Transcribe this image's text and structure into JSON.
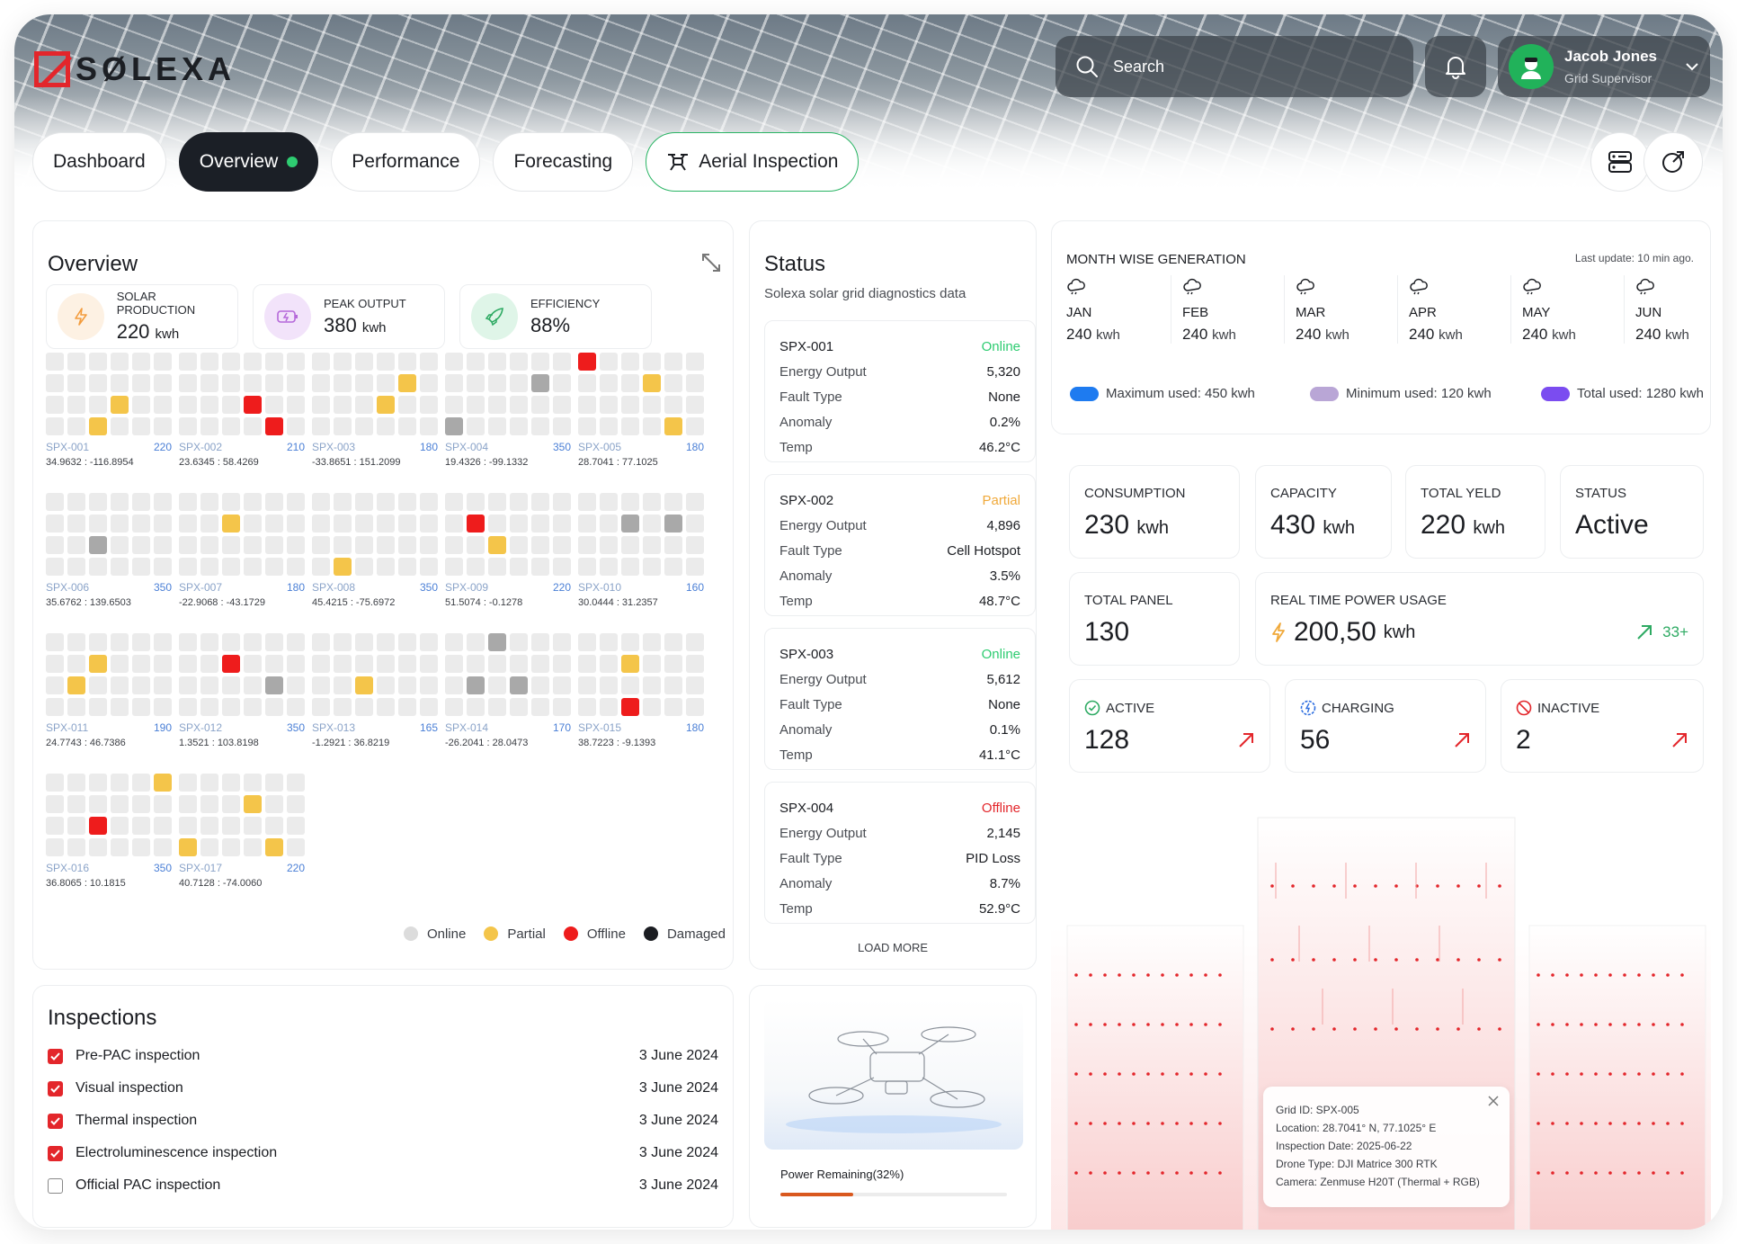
{
  "brand": {
    "name": "SØLEXA"
  },
  "search": {
    "placeholder": "Search"
  },
  "user": {
    "name": "Jacob Jones",
    "role": "Grid Supervisor"
  },
  "tabs": [
    {
      "label": "Dashboard"
    },
    {
      "label": "Overview"
    },
    {
      "label": "Performance"
    },
    {
      "label": "Forecasting"
    },
    {
      "label": "Aerial Inspection"
    }
  ],
  "overview": {
    "title": "Overview",
    "stats": [
      {
        "label": "SOLAR PRODUCTION",
        "value": "220",
        "unit": "kwh"
      },
      {
        "label": "PEAK OUTPUT",
        "value": "380",
        "unit": "kwh"
      },
      {
        "label": "EFFICIENCY",
        "value": "88%",
        "unit": ""
      }
    ],
    "grids": [
      {
        "id": "SPX-001",
        "value": "220",
        "coords": "34.9632 : -116.8954",
        "cells": {
          "15": "p",
          "20": "p"
        }
      },
      {
        "id": "SPX-002",
        "value": "210",
        "coords": "23.6345 : 58.4269",
        "cells": {
          "15": "o",
          "22": "o"
        }
      },
      {
        "id": "SPX-003",
        "value": "180",
        "coords": "-33.8651 : 151.2099",
        "cells": {
          "10": "p",
          "15": "p"
        }
      },
      {
        "id": "SPX-004",
        "value": "350",
        "coords": "19.4326 : -99.1332",
        "cells": {
          "10": "g",
          "18": "g"
        }
      },
      {
        "id": "SPX-005",
        "value": "180",
        "coords": "28.7041 : 77.1025",
        "cells": {
          "0": "o",
          "9": "p",
          "22": "p"
        }
      },
      {
        "id": "SPX-006",
        "value": "350",
        "coords": "35.6762 : 139.6503",
        "cells": {
          "14": "g"
        }
      },
      {
        "id": "SPX-007",
        "value": "180",
        "coords": "-22.9068 : -43.1729",
        "cells": {
          "8": "p"
        }
      },
      {
        "id": "SPX-008",
        "value": "350",
        "coords": "45.4215 : -75.6972",
        "cells": {
          "19": "p"
        }
      },
      {
        "id": "SPX-009",
        "value": "220",
        "coords": "51.5074 : -0.1278",
        "cells": {
          "7": "o",
          "14": "p"
        }
      },
      {
        "id": "SPX-010",
        "value": "160",
        "coords": "30.0444 : 31.2357",
        "cells": {
          "8": "g",
          "10": "g"
        }
      },
      {
        "id": "SPX-011",
        "value": "190",
        "coords": "24.7743 : 46.7386",
        "cells": {
          "8": "p",
          "13": "p"
        }
      },
      {
        "id": "SPX-012",
        "value": "350",
        "coords": "1.3521 : 103.8198",
        "cells": {
          "8": "o",
          "16": "g"
        }
      },
      {
        "id": "SPX-013",
        "value": "165",
        "coords": "-1.2921 : 36.8219",
        "cells": {
          "14": "p"
        }
      },
      {
        "id": "SPX-014",
        "value": "170",
        "coords": "-26.2041 : 28.0473",
        "cells": {
          "2": "g",
          "13": "g",
          "15": "g"
        }
      },
      {
        "id": "SPX-015",
        "value": "180",
        "coords": "38.7223 : -9.1393",
        "cells": {
          "8": "p",
          "20": "o"
        }
      },
      {
        "id": "SPX-016",
        "value": "350",
        "coords": "36.8065 : 10.1815",
        "cells": {
          "5": "p",
          "14": "o"
        }
      },
      {
        "id": "SPX-017",
        "value": "220",
        "coords": "40.7128 : -74.0060",
        "cells": {
          "9": "p",
          "18": "p",
          "22": "p"
        }
      }
    ],
    "legend": [
      {
        "label": "Online",
        "color": "#dcdcdc"
      },
      {
        "label": "Partial",
        "color": "#f4c54a"
      },
      {
        "label": "Offline",
        "color": "#ee1c1c"
      },
      {
        "label": "Damaged",
        "color": "#1b1d22"
      }
    ]
  },
  "status": {
    "title": "Status",
    "subtitle": "Solexa solar grid diagnostics data",
    "load_more": "LOAD MORE",
    "rows_labels": [
      "Energy Output",
      "Fault Type",
      "Anomaly",
      "Temp"
    ],
    "items": [
      {
        "id": "SPX-001",
        "state": "Online",
        "color": "#2ecc71",
        "energy": "5,320",
        "fault": "None",
        "anomaly": "0.2%",
        "temp": "46.2°C"
      },
      {
        "id": "SPX-002",
        "state": "Partial",
        "color": "#f0a93a",
        "energy": "4,896",
        "fault": "Cell Hotspot",
        "anomaly": "3.5%",
        "temp": "48.7°C"
      },
      {
        "id": "SPX-003",
        "state": "Online",
        "color": "#2ecc71",
        "energy": "5,612",
        "fault": "None",
        "anomaly": "0.1%",
        "temp": "41.1°C"
      },
      {
        "id": "SPX-004",
        "state": "Offline",
        "color": "#e3262b",
        "energy": "2,145",
        "fault": "PID Loss",
        "anomaly": "8.7%",
        "temp": "52.9°C"
      }
    ]
  },
  "monthwise": {
    "title": "MONTH WISE GENERATION",
    "updated": "Last update: 10 min ago.",
    "months": [
      {
        "name": "JAN",
        "value": "240",
        "unit": "kwh"
      },
      {
        "name": "FEB",
        "value": "240",
        "unit": "kwh"
      },
      {
        "name": "MAR",
        "value": "240",
        "unit": "kwh"
      },
      {
        "name": "APR",
        "value": "240",
        "unit": "kwh"
      },
      {
        "name": "MAY",
        "value": "240",
        "unit": "kwh"
      },
      {
        "name": "JUN",
        "value": "240",
        "unit": "kwh"
      }
    ],
    "legend": [
      {
        "label": "Maximum used: 450 kwh",
        "color": "#1e7bf0"
      },
      {
        "label": "Minimum used: 120 kwh",
        "color": "#b9a6d6"
      },
      {
        "label": "Total used: 1280 kwh",
        "color": "#7b4cf0"
      }
    ]
  },
  "metrics": {
    "consumption": {
      "label": "CONSUMPTION",
      "value": "230",
      "unit": "kwh"
    },
    "capacity": {
      "label": "CAPACITY",
      "value": "430",
      "unit": "kwh"
    },
    "total_yield": {
      "label": "TOTAL YELD",
      "value": "220",
      "unit": "kwh"
    },
    "status": {
      "label": "STATUS",
      "value": "Active"
    },
    "total_panel": {
      "label": "TOTAL PANEL",
      "value": "130"
    },
    "realtime": {
      "label": "REAL TIME POWER USAGE",
      "value": "200,50",
      "unit": "kwh",
      "trend": "33+"
    },
    "active": {
      "label": "ACTIVE",
      "value": "128"
    },
    "charging": {
      "label": "CHARGING",
      "value": "56"
    },
    "inactive": {
      "label": "INACTIVE",
      "value": "2"
    }
  },
  "inspections": {
    "title": "Inspections",
    "items": [
      {
        "label": "Pre-PAC inspection",
        "date": "3 June 2024",
        "checked": true
      },
      {
        "label": "Visual inspection",
        "date": "3 June 2024",
        "checked": true
      },
      {
        "label": "Thermal inspection",
        "date": "3 June 2024",
        "checked": true
      },
      {
        "label": "Electroluminescence inspection",
        "date": "3 June 2024",
        "checked": true
      },
      {
        "label": "Official PAC inspection",
        "date": "3 June 2024",
        "checked": false
      }
    ]
  },
  "drone": {
    "power_label": "Power Remaining(32%)",
    "power_fraction": 0.32
  },
  "tooltip": {
    "grid": "Grid ID: SPX-005",
    "location": "Location: 28.7041° N, 77.1025° E",
    "date": "Inspection Date: 2025-06-22",
    "drone": "Drone Type: DJI Matrice 300 RTK",
    "camera": "Camera: Zenmuse H20T (Thermal + RGB)"
  }
}
